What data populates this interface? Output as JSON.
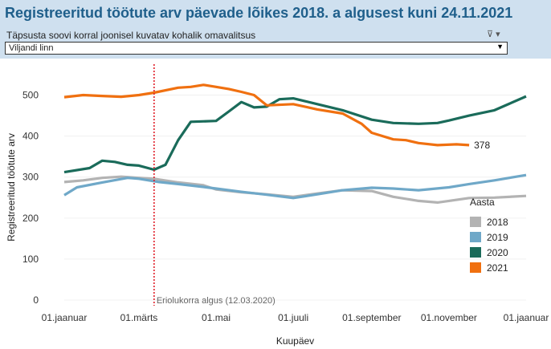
{
  "header": {
    "title": "Registreeritud töötute arv päevade lõikes 2018. a algusest kuni 24.11.2021",
    "filter_label": "Täpsusta soovi korral  joonisel kuvatav kohalik omavalitsus",
    "selected_value": "Viljandi linn"
  },
  "colors": {
    "2018": "#b3b3b3",
    "2019": "#6fa8c8",
    "2020": "#1a6b5a",
    "2021": "#f07010",
    "annotation": "#e0202a",
    "title": "#1f5f8b"
  },
  "chart_data": {
    "type": "line",
    "xlabel": "Kuupäev",
    "ylabel": "Registreeritud töötute arv",
    "ylim": [
      0,
      550
    ],
    "yticks": [
      0,
      100,
      200,
      300,
      400,
      500
    ],
    "x_domain_days": [
      0,
      365
    ],
    "x_tick_labels": [
      "01.jaanuar",
      "01.märts",
      "01.mai",
      "01.juuli",
      "01.september",
      "01.november",
      "01.jaanuar"
    ],
    "x_tick_days": [
      0,
      59,
      120,
      181,
      243,
      304,
      365
    ],
    "legend": {
      "title": "Aasta",
      "position": "right"
    },
    "annotation": {
      "label": "Eriolukorra algus (12.03.2020)",
      "day": 71
    },
    "end_label": {
      "series": "2021",
      "text": "378"
    },
    "series": [
      {
        "name": "2018",
        "points": [
          [
            0,
            288
          ],
          [
            15,
            292
          ],
          [
            30,
            298
          ],
          [
            45,
            301
          ],
          [
            59,
            298
          ],
          [
            71,
            296
          ],
          [
            90,
            287
          ],
          [
            110,
            280
          ],
          [
            120,
            270
          ],
          [
            140,
            263
          ],
          [
            160,
            258
          ],
          [
            181,
            252
          ],
          [
            200,
            260
          ],
          [
            220,
            268
          ],
          [
            243,
            266
          ],
          [
            260,
            252
          ],
          [
            280,
            242
          ],
          [
            295,
            238
          ],
          [
            304,
            242
          ],
          [
            320,
            249
          ],
          [
            340,
            250
          ],
          [
            365,
            254
          ]
        ]
      },
      {
        "name": "2019",
        "points": [
          [
            0,
            256
          ],
          [
            10,
            275
          ],
          [
            30,
            287
          ],
          [
            50,
            298
          ],
          [
            59,
            296
          ],
          [
            75,
            288
          ],
          [
            90,
            283
          ],
          [
            110,
            276
          ],
          [
            120,
            272
          ],
          [
            140,
            264
          ],
          [
            160,
            257
          ],
          [
            181,
            249
          ],
          [
            200,
            258
          ],
          [
            220,
            268
          ],
          [
            243,
            274
          ],
          [
            260,
            272
          ],
          [
            280,
            268
          ],
          [
            304,
            275
          ],
          [
            320,
            283
          ],
          [
            340,
            292
          ],
          [
            365,
            305
          ]
        ]
      },
      {
        "name": "2020",
        "points": [
          [
            0,
            312
          ],
          [
            20,
            322
          ],
          [
            30,
            340
          ],
          [
            40,
            337
          ],
          [
            50,
            330
          ],
          [
            59,
            328
          ],
          [
            71,
            318
          ],
          [
            80,
            330
          ],
          [
            90,
            390
          ],
          [
            100,
            435
          ],
          [
            120,
            437
          ],
          [
            130,
            460
          ],
          [
            140,
            483
          ],
          [
            150,
            470
          ],
          [
            160,
            472
          ],
          [
            170,
            490
          ],
          [
            181,
            492
          ],
          [
            200,
            478
          ],
          [
            220,
            463
          ],
          [
            243,
            440
          ],
          [
            260,
            432
          ],
          [
            280,
            430
          ],
          [
            295,
            432
          ],
          [
            304,
            438
          ],
          [
            320,
            450
          ],
          [
            340,
            463
          ],
          [
            365,
            497
          ]
        ]
      },
      {
        "name": "2021",
        "points": [
          [
            0,
            495
          ],
          [
            15,
            500
          ],
          [
            30,
            498
          ],
          [
            45,
            496
          ],
          [
            59,
            500
          ],
          [
            71,
            506
          ],
          [
            90,
            518
          ],
          [
            100,
            520
          ],
          [
            110,
            525
          ],
          [
            120,
            520
          ],
          [
            130,
            515
          ],
          [
            140,
            508
          ],
          [
            150,
            500
          ],
          [
            160,
            475
          ],
          [
            181,
            478
          ],
          [
            200,
            465
          ],
          [
            220,
            455
          ],
          [
            235,
            430
          ],
          [
            243,
            408
          ],
          [
            260,
            392
          ],
          [
            270,
            390
          ],
          [
            280,
            383
          ],
          [
            295,
            378
          ],
          [
            310,
            380
          ],
          [
            320,
            378
          ]
        ]
      }
    ]
  }
}
